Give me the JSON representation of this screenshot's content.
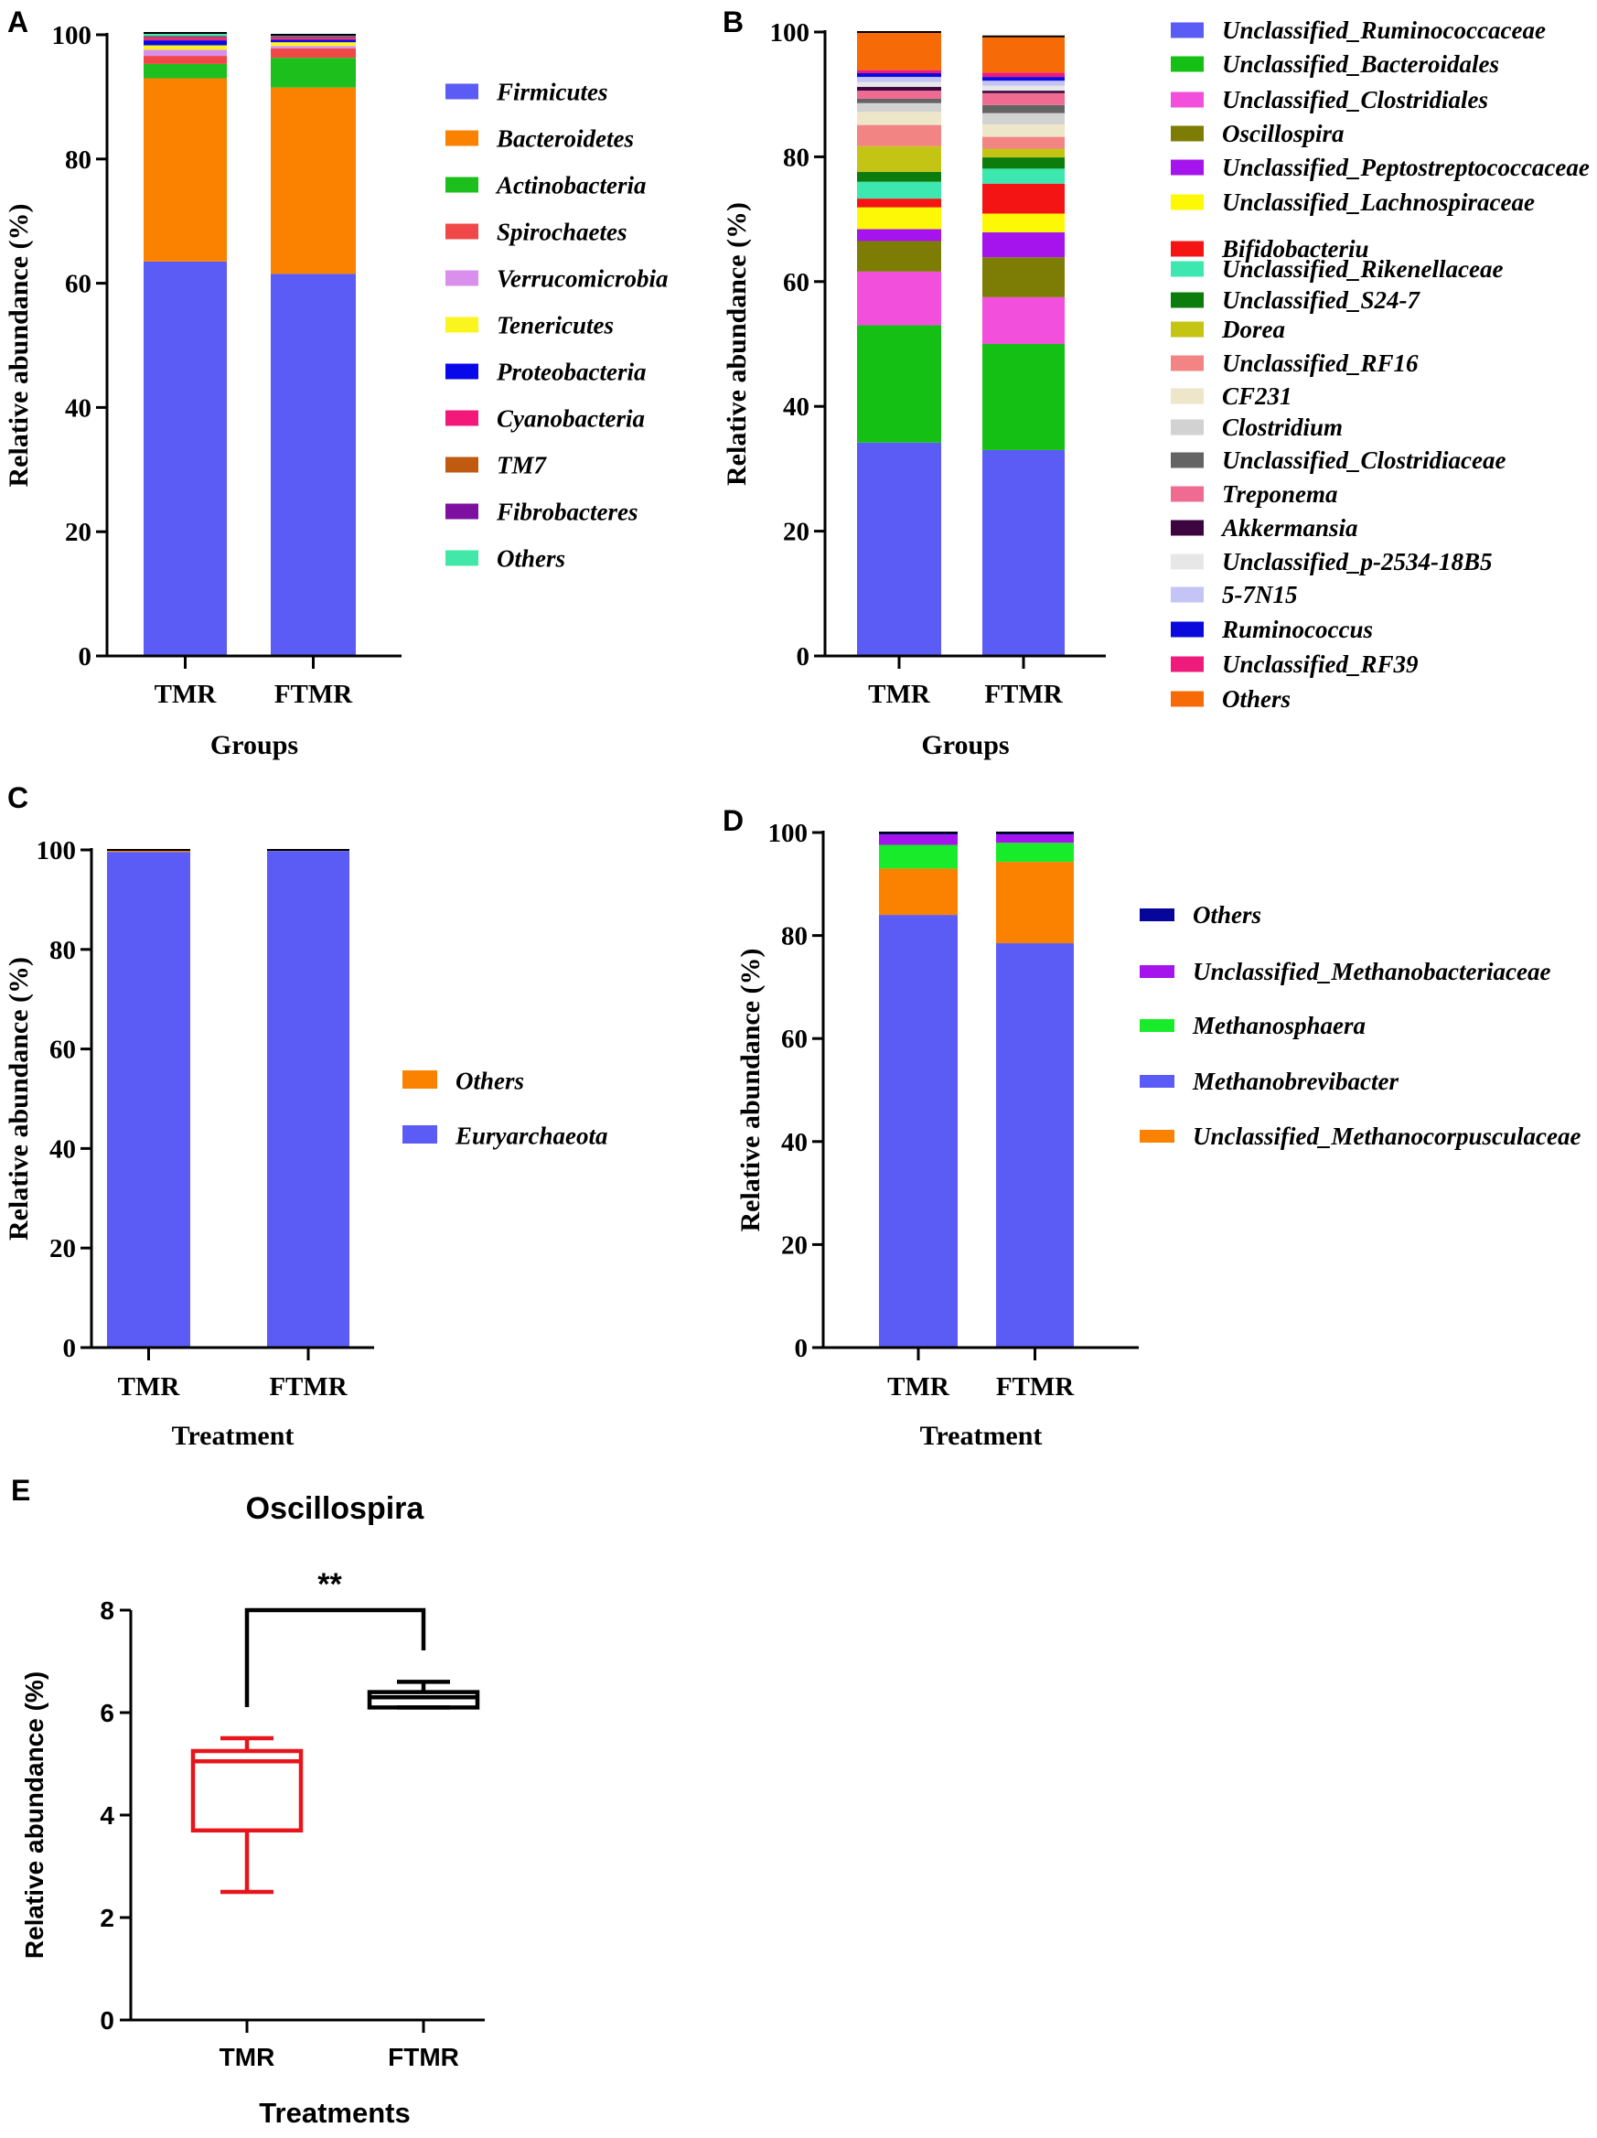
{
  "panels": [
    {
      "letter": "A",
      "chart_data": {
        "type": "bar",
        "stacked": true,
        "categories": [
          "TMR",
          "FTMR"
        ],
        "xlabel": "Groups",
        "ylabel": "Relative abundance (%)",
        "ylim": [
          0,
          100
        ],
        "yticks": [
          0,
          20,
          40,
          60,
          80,
          100
        ],
        "series": [
          {
            "name": "Firmicutes",
            "color": "#5b5bf5",
            "values": [
              63.5,
              61.5
            ]
          },
          {
            "name": "Bacteroidetes",
            "color": "#fb8200",
            "values": [
              29.5,
              30.0
            ]
          },
          {
            "name": "Actinobacteria",
            "color": "#1dbf1d",
            "values": [
              2.3,
              4.8
            ]
          },
          {
            "name": "Spirochaetes",
            "color": "#f04848",
            "values": [
              1.3,
              1.5
            ]
          },
          {
            "name": "Verrucomicrobia",
            "color": "#d890ec",
            "values": [
              1.0,
              0.4
            ]
          },
          {
            "name": "Tenericutes",
            "color": "#fbf51f",
            "values": [
              0.7,
              0.6
            ]
          },
          {
            "name": "Proteobacteria",
            "color": "#0808ea",
            "values": [
              0.8,
              0.4
            ]
          },
          {
            "name": "Cyanobacteria",
            "color": "#f2197a",
            "values": [
              0.3,
              0.2
            ]
          },
          {
            "name": "TM7",
            "color": "#c05a10",
            "values": [
              0.2,
              0.2
            ]
          },
          {
            "name": "Fibrobacteres",
            "color": "#7d10a0",
            "values": [
              0.2,
              0.2
            ]
          },
          {
            "name": "Others",
            "color": "#42e8a8",
            "values": [
              0.5,
              0.2
            ]
          }
        ]
      }
    },
    {
      "letter": "B",
      "chart_data": {
        "type": "bar",
        "stacked": true,
        "categories": [
          "TMR",
          "FTMR"
        ],
        "xlabel": "Groups",
        "ylabel": "Relative abundance (%)",
        "ylim": [
          0,
          100
        ],
        "yticks": [
          0,
          20,
          40,
          60,
          80,
          100
        ],
        "series": [
          {
            "name": "Unclassified_Ruminococcaceae",
            "color": "#5b5bf5",
            "values": [
              34.2,
              33.0
            ]
          },
          {
            "name": "Unclassified_Bacteroidales",
            "color": "#14c014",
            "values": [
              18.8,
              17.0
            ]
          },
          {
            "name": "Unclassified_Clostridiales",
            "color": "#f250dc",
            "values": [
              8.6,
              7.5
            ]
          },
          {
            "name": "Oscillospira",
            "color": "#7d7d05",
            "values": [
              4.9,
              6.4
            ]
          },
          {
            "name": "Unclassified_Peptostreptococcaceae",
            "color": "#a514ec",
            "values": [
              1.9,
              4.0
            ]
          },
          {
            "name": "Unclassified_Lachnospiraceae",
            "color": "#fdf805",
            "values": [
              3.5,
              3.0
            ]
          },
          {
            "name": "Bifidobacteriu",
            "color": "#f51414",
            "values": [
              1.4,
              4.8
            ]
          },
          {
            "name": "Unclassified_Rikenellaceae",
            "color": "#3de8b0",
            "values": [
              2.7,
              2.4
            ]
          },
          {
            "name": "Unclassified_S24-7",
            "color": "#0c7c0c",
            "values": [
              1.6,
              1.8
            ]
          },
          {
            "name": "Dorea",
            "color": "#c4c414",
            "values": [
              4.1,
              1.4
            ]
          },
          {
            "name": "Unclassified_RF16",
            "color": "#f38484",
            "values": [
              3.4,
              1.9
            ]
          },
          {
            "name": "CF231",
            "color": "#ede6c8",
            "values": [
              2.1,
              2.0
            ]
          },
          {
            "name": "Clostridium",
            "color": "#d2d2d2",
            "values": [
              1.4,
              1.8
            ]
          },
          {
            "name": "Unclassified_Clostridiaceae",
            "color": "#646464",
            "values": [
              0.7,
              1.3
            ]
          },
          {
            "name": "Treponema",
            "color": "#f06b92",
            "values": [
              1.3,
              1.9
            ]
          },
          {
            "name": "Akkermansia",
            "color": "#3c0540",
            "values": [
              0.6,
              0.4
            ]
          },
          {
            "name": "Unclassified_p-2534-18B5",
            "color": "#e7e7e7",
            "values": [
              0.8,
              0.8
            ]
          },
          {
            "name": "5-7N15",
            "color": "#c4c4f6",
            "values": [
              0.8,
              0.8
            ]
          },
          {
            "name": "Ruminococcus",
            "color": "#0a0adc",
            "values": [
              0.6,
              0.6
            ]
          },
          {
            "name": "Unclassified_RF39",
            "color": "#ee1a7c",
            "values": [
              0.5,
              0.7
            ]
          },
          {
            "name": "Others",
            "color": "#f66b07",
            "values": [
              6.1,
              5.8
            ]
          }
        ]
      }
    },
    {
      "letter": "C",
      "chart_data": {
        "type": "bar",
        "stacked": true,
        "categories": [
          "TMR",
          "FTMR"
        ],
        "xlabel": "Treatment",
        "ylabel": "Relative abundance (%)",
        "ylim": [
          0,
          100
        ],
        "yticks": [
          0,
          20,
          40,
          60,
          80,
          100
        ],
        "series": [
          {
            "name": "Euryarchaeota",
            "color": "#5b5bf5",
            "values": [
              99.6,
              99.8
            ]
          },
          {
            "name": "Others",
            "color": "#fb8200",
            "values": [
              0.4,
              0.2
            ]
          }
        ],
        "legend_order": [
          "Others",
          "Euryarchaeota"
        ]
      }
    },
    {
      "letter": "D",
      "chart_data": {
        "type": "bar",
        "stacked": true,
        "categories": [
          "TMR",
          "FTMR"
        ],
        "xlabel": "Treatment",
        "ylabel": "Relative abundance (%)",
        "ylim": [
          0,
          100
        ],
        "yticks": [
          0,
          20,
          40,
          60,
          80,
          100
        ],
        "series": [
          {
            "name": "Methanobrevibacter",
            "color": "#5b5bf5",
            "values": [
              84.0,
              78.5
            ]
          },
          {
            "name": "Unclassified_Methanocorpusculaceae",
            "color": "#fb8200",
            "values": [
              9.0,
              15.8
            ]
          },
          {
            "name": "Methanosphaera",
            "color": "#18ec2a",
            "values": [
              4.6,
              3.7
            ]
          },
          {
            "name": "Unclassified_Methanobacteriaceae",
            "color": "#a514ec",
            "values": [
              2.0,
              1.6
            ]
          },
          {
            "name": "Others",
            "color": "#06069a",
            "values": [
              0.4,
              0.4
            ]
          }
        ],
        "legend_order": [
          "Others",
          "Unclassified_Methanobacteriaceae",
          "Methanosphaera",
          "Methanobrevibacter",
          "Unclassified_Methanocorpusculaceae"
        ]
      }
    },
    {
      "letter": "E",
      "chart_data": {
        "type": "box",
        "title": "Oscillospira",
        "categories": [
          "TMR",
          "FTMR"
        ],
        "xlabel": "Treatments",
        "ylabel": "Relative abundance (%)",
        "ylim": [
          0,
          8
        ],
        "yticks": [
          0,
          2,
          4,
          6,
          8
        ],
        "boxes": [
          {
            "name": "TMR",
            "color": "#e8141c",
            "min": 2.5,
            "q1": 3.7,
            "median": 5.05,
            "q3": 5.25,
            "max": 5.5
          },
          {
            "name": "FTMR",
            "color": "#000000",
            "min": 6.1,
            "q1": 6.1,
            "median": 6.3,
            "q3": 6.4,
            "max": 6.6
          }
        ],
        "significance": "**"
      }
    }
  ]
}
